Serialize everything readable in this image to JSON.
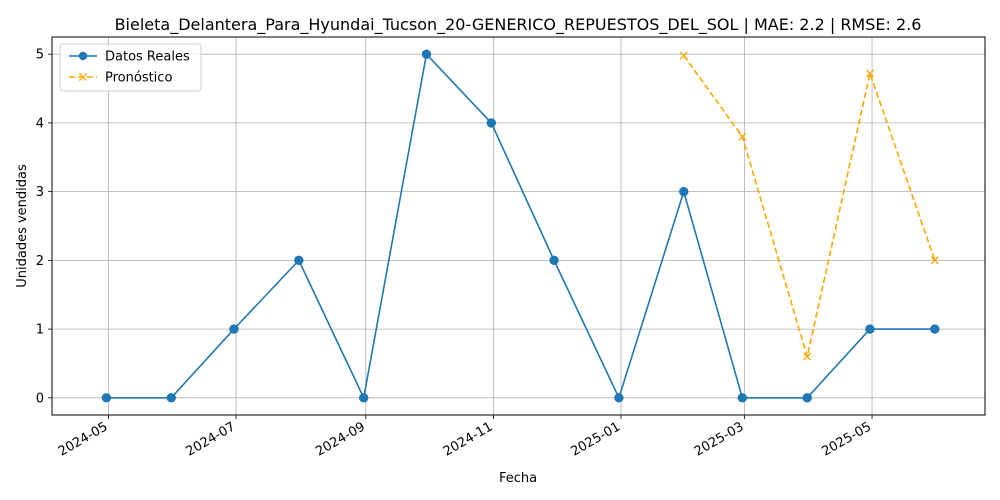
{
  "chart_data": {
    "type": "line",
    "title": "Bieleta_Delantera_Para_Hyundai_Tucson_20-GENERICO_REPUESTOS_DEL_SOL | MAE: 2.2 | RMSE: 2.6",
    "xlabel": "Fecha",
    "ylabel": "Unidades vendidas",
    "xlim": [
      "2024-04-04",
      "2025-06-24"
    ],
    "ylim": [
      -0.25,
      5.25
    ],
    "xticks": [
      "2024-05",
      "2024-07",
      "2024-09",
      "2024-11",
      "2025-01",
      "2025-03",
      "2025-05"
    ],
    "yticks": [
      0,
      1,
      2,
      3,
      4,
      5
    ],
    "grid": true,
    "legend_position": "top-left",
    "series": [
      {
        "name": "Datos Reales",
        "color": "#1f77b4",
        "marker": "circle",
        "linestyle": "solid",
        "x": [
          "2024-04-30",
          "2024-05-31",
          "2024-06-30",
          "2024-07-31",
          "2024-08-31",
          "2024-09-30",
          "2024-10-31",
          "2024-11-30",
          "2024-12-31",
          "2025-01-31",
          "2025-02-28",
          "2025-03-31",
          "2025-04-30",
          "2025-05-31"
        ],
        "y": [
          0,
          0,
          1,
          2,
          0,
          5,
          4,
          2,
          0,
          3,
          0,
          0,
          1,
          1
        ]
      },
      {
        "name": "Pronóstico",
        "color": "#ffa500",
        "marker": "x",
        "linestyle": "dashed",
        "x": [
          "2025-01-31",
          "2025-02-28",
          "2025-03-31",
          "2025-04-30",
          "2025-05-31"
        ],
        "y": [
          4.98,
          3.8,
          0.6,
          4.72,
          2.0
        ]
      }
    ]
  }
}
